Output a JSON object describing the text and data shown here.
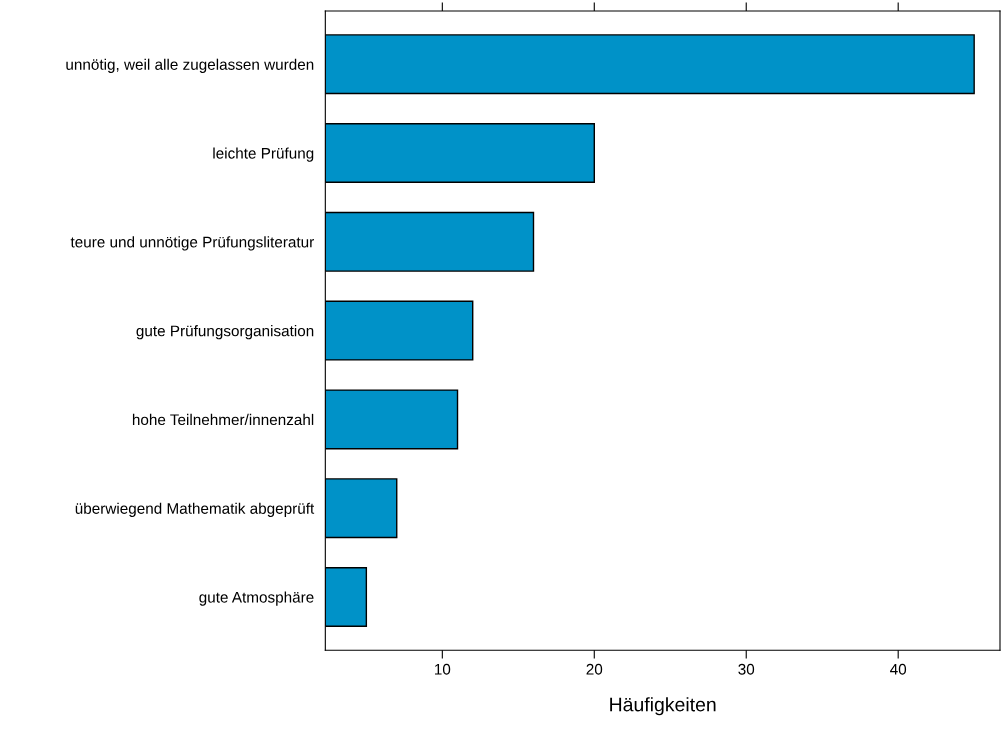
{
  "chart_data": {
    "type": "bar",
    "orientation": "horizontal",
    "xlabel": "Häufigkeiten",
    "categories": [
      "unnötig, weil alle zugelassen wurden",
      "leichte Prüfung",
      "teure und unnötige Prüfungsliteratur",
      "gute Prüfungsorganisation",
      "hohe Teilnehmer/innenzahl",
      "überwiegend Mathematik abgeprüft",
      "gute Atmosphäre"
    ],
    "values": [
      45,
      20,
      16,
      12,
      11,
      7,
      5
    ],
    "color": "#0092c8",
    "xlim": [
      2.3,
      46.7
    ],
    "xticks": [
      10,
      20,
      30,
      40
    ],
    "grid": false,
    "legend": false
  }
}
